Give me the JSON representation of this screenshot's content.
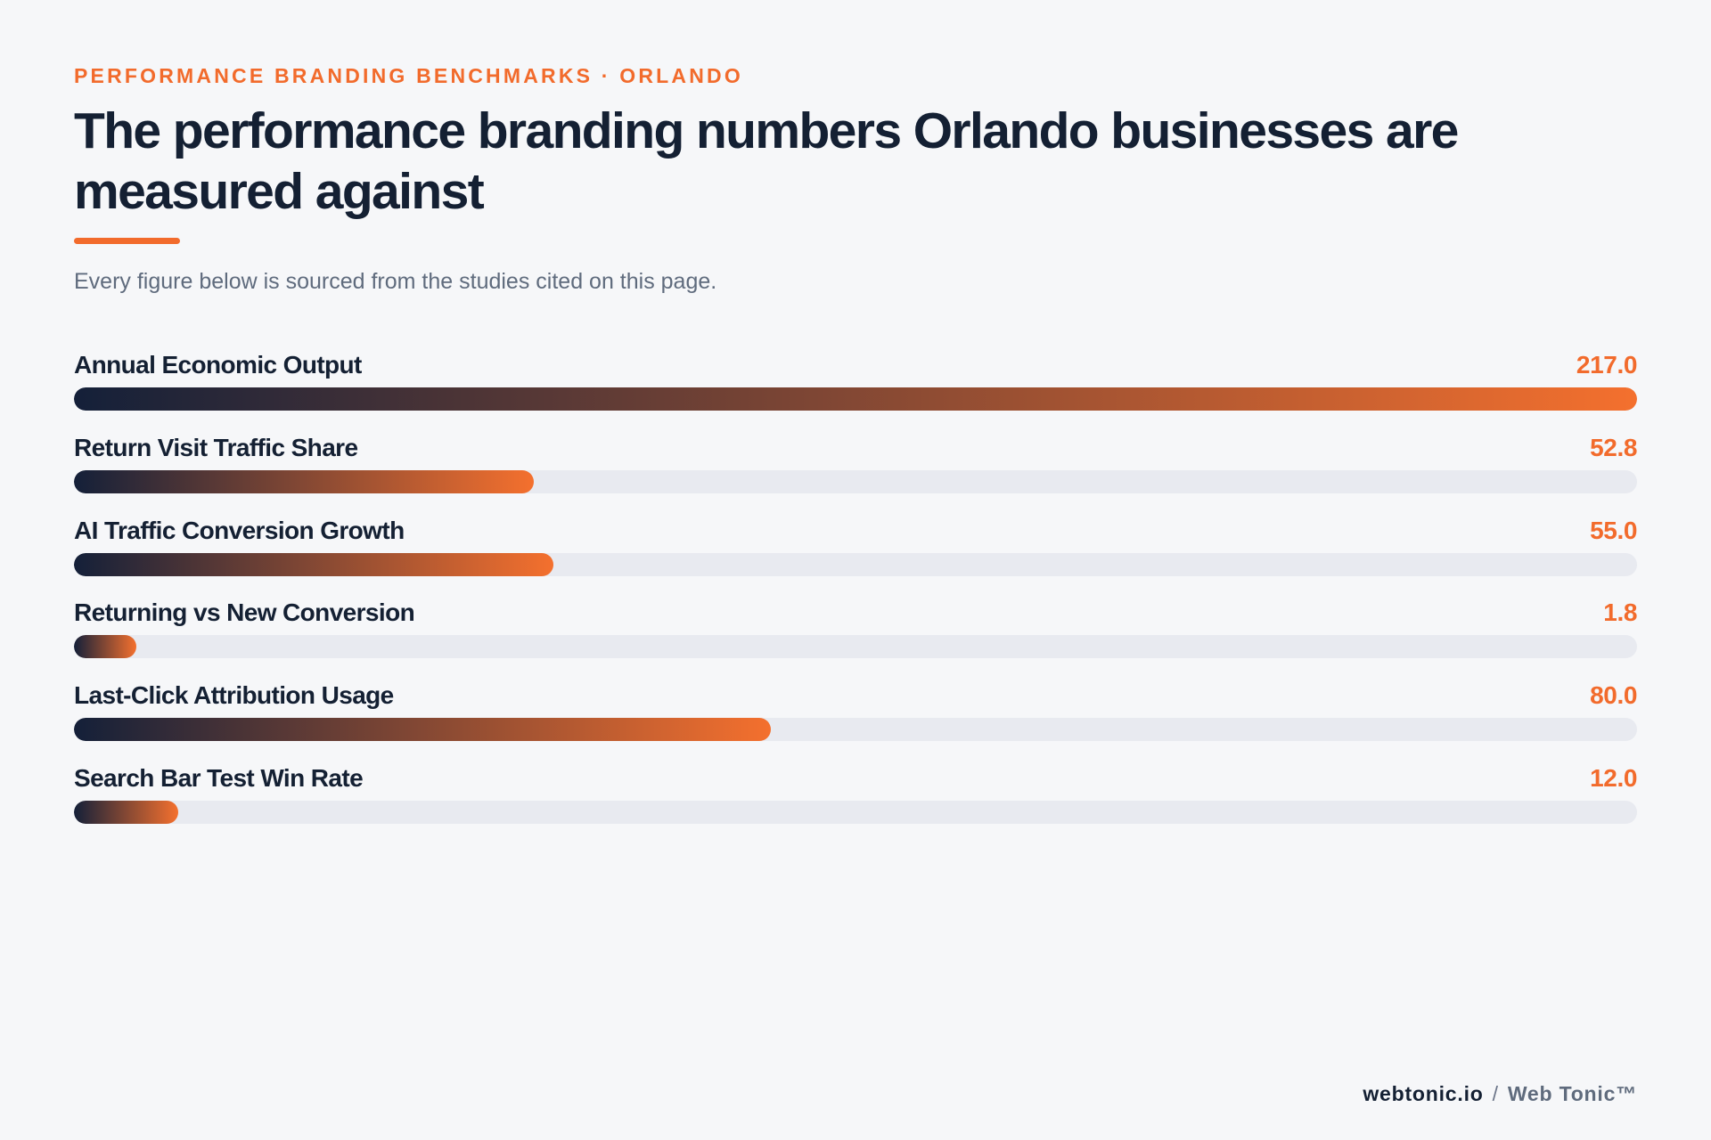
{
  "header": {
    "eyebrow": "PERFORMANCE BRANDING BENCHMARKS · ORLANDO",
    "title": "The performance branding numbers Orlando businesses are measured against",
    "subtitle": "Every figure below is sourced from the studies cited on this page."
  },
  "colors": {
    "accent": "#f26b2c",
    "navy": "#142033",
    "track": "#e8eaf0",
    "gradient_start": "#142039",
    "gradient_end": "#f4702e"
  },
  "chart_data": {
    "type": "bar",
    "orientation": "horizontal",
    "categories": [
      "Annual Economic Output",
      "Return Visit Traffic Share",
      "AI Traffic Conversion Growth",
      "Returning vs New Conversion",
      "Last-Click Attribution Usage",
      "Search Bar Test Win Rate"
    ],
    "values": [
      217.0,
      52.8,
      55.0,
      1.8,
      80.0,
      12.0
    ],
    "value_labels": [
      "217.0",
      "52.8",
      "55.0",
      "1.8",
      "80.0",
      "12.0"
    ],
    "xlim": [
      0,
      217.0
    ],
    "grid": false,
    "legend": "none"
  },
  "footer": {
    "domain": "webtonic.io",
    "separator": "/",
    "brand": "Web Tonic™"
  }
}
